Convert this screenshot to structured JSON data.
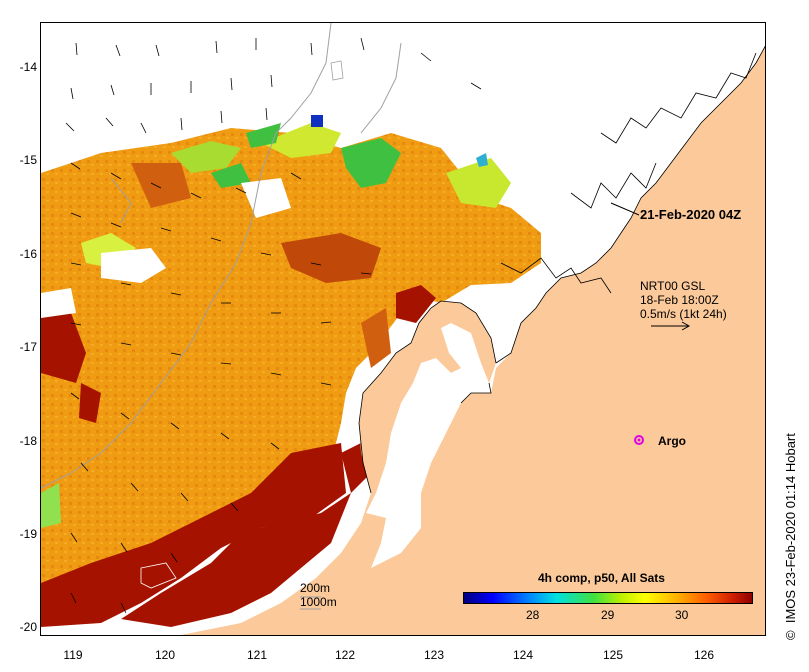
{
  "map": {
    "date_label": "21-Feb-2020 04Z",
    "current_source": "NRT00 GSL",
    "current_time": "18-Feb 18:00Z",
    "current_scale": "0.5m/s (1kt 24h)",
    "argo_label": "Argo",
    "contour_200": "200m",
    "contour_1000": "1000m",
    "credit": "IMOS 23-Feb-2020 01:14 Hobart",
    "copyright_symbol": "©"
  },
  "axes": {
    "y_ticks": [
      "-14",
      "-15",
      "-16",
      "-17",
      "-18",
      "-19",
      "-20"
    ],
    "x_ticks": [
      "119",
      "120",
      "121",
      "122",
      "123",
      "124",
      "125",
      "126"
    ]
  },
  "colorbar": {
    "title": "4h comp, p50, All Sats",
    "ticks": [
      "28",
      "29",
      "30"
    ],
    "colors": [
      "#00007f",
      "#0000ff",
      "#0080ff",
      "#00e0e0",
      "#40e040",
      "#c0f000",
      "#ffff00",
      "#ffb000",
      "#ff6000",
      "#d02000",
      "#900000"
    ]
  },
  "colors": {
    "land": "#fbc99a",
    "cloud": "#ffffff",
    "sst_warm": "#f0a010",
    "sst_hot": "#a61200",
    "argo": "#e000e0"
  }
}
